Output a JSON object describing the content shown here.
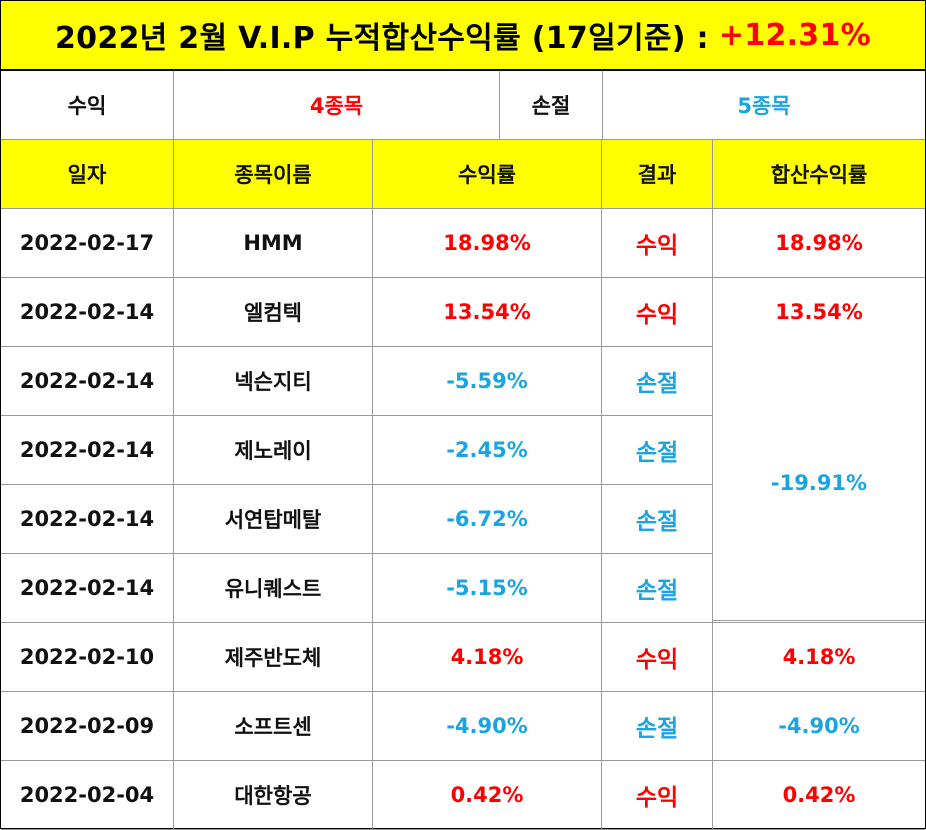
{
  "title": {
    "text": "2022년 2월 V.I.P 누적합산수익률 (17일기준) :",
    "total": "+12.31%"
  },
  "summary": {
    "profit_label": "수익",
    "profit_value": "4종목",
    "loss_label": "손절",
    "loss_value": "5종목"
  },
  "headers": [
    "일자",
    "종목이름",
    "수익률",
    "결과",
    "합산수익률"
  ],
  "rows": [
    {
      "date": "2022-02-17",
      "name": "HMM",
      "rate": "18.98%",
      "result": "수익",
      "sum": "18.98%",
      "type": "profit"
    },
    {
      "date": "2022-02-14",
      "name": "엘컴텍",
      "rate": "13.54%",
      "result": "수익",
      "sum": "13.54%",
      "type": "profit"
    },
    {
      "date": "2022-02-14",
      "name": "넥슨지티",
      "rate": "-5.59%",
      "result": "손절",
      "type": "loss"
    },
    {
      "date": "2022-02-14",
      "name": "제노레이",
      "rate": "-2.45%",
      "result": "손절",
      "type": "loss"
    },
    {
      "date": "2022-02-14",
      "name": "서연탑메탈",
      "rate": "-6.72%",
      "result": "손절",
      "type": "loss"
    },
    {
      "date": "2022-02-14",
      "name": "유니퀘스트",
      "rate": "-5.15%",
      "result": "손절",
      "type": "loss"
    },
    {
      "date": "2022-02-10",
      "name": "제주반도체",
      "rate": "4.18%",
      "result": "수익",
      "sum": "4.18%",
      "type": "profit"
    },
    {
      "date": "2022-02-09",
      "name": "소프트센",
      "rate": "-4.90%",
      "result": "손절",
      "sum": "-4.90%",
      "type": "loss"
    },
    {
      "date": "2022-02-04",
      "name": "대한항공",
      "rate": "0.42%",
      "result": "수익",
      "sum": "0.42%",
      "type": "profit"
    }
  ],
  "merged_sum": "-19.91%",
  "colors": {
    "header_bg": "#ffff00",
    "profit": "#ff0000",
    "loss": "#1aa4e0",
    "border": "#9a9a9a"
  }
}
